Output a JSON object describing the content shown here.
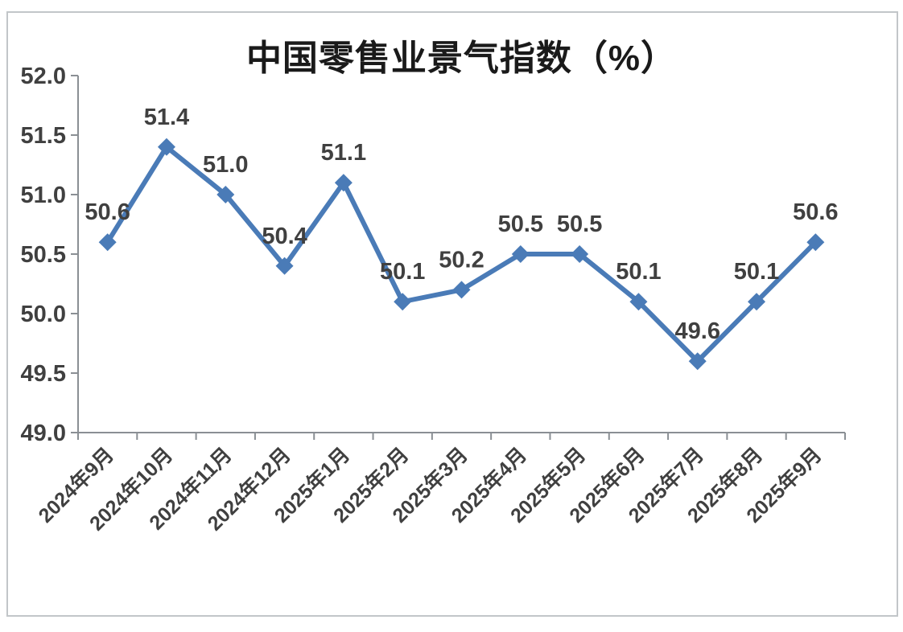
{
  "page": {
    "background_color": "#ffffff",
    "frame_border_color": "#c2c6c9"
  },
  "chart_data": {
    "type": "line",
    "title": "中国零售业景气指数（%）",
    "categories": [
      "2024年9月",
      "2024年10月",
      "2024年11月",
      "2024年12月",
      "2025年1月",
      "2025年2月",
      "2025年3月",
      "2025年4月",
      "2025年5月",
      "2025年6月",
      "2025年7月",
      "2025年8月",
      "2025年9月"
    ],
    "values": [
      50.6,
      51.4,
      51.0,
      50.4,
      51.1,
      50.1,
      50.2,
      50.5,
      50.5,
      50.1,
      49.6,
      50.1,
      50.6
    ],
    "data_labels": [
      "50.6",
      "51.4",
      "51.0",
      "50.4",
      "51.1",
      "50.1",
      "50.2",
      "50.5",
      "50.5",
      "50.1",
      "49.6",
      "50.1",
      "50.6"
    ],
    "xlabel": "",
    "ylabel": "",
    "ylim": [
      49.0,
      52.0
    ],
    "ytick_step": 0.5,
    "ytick_labels": [
      "49.0",
      "49.5",
      "50.0",
      "50.5",
      "51.0",
      "51.5",
      "52.0"
    ],
    "grid": false,
    "legend": "none",
    "marker": "diamond",
    "line_color": "#4a7bb7",
    "marker_color": "#4a7bb7",
    "label_color": "#404040",
    "axis_color": "#8a8f94",
    "title_color": "#1a1a1a"
  }
}
